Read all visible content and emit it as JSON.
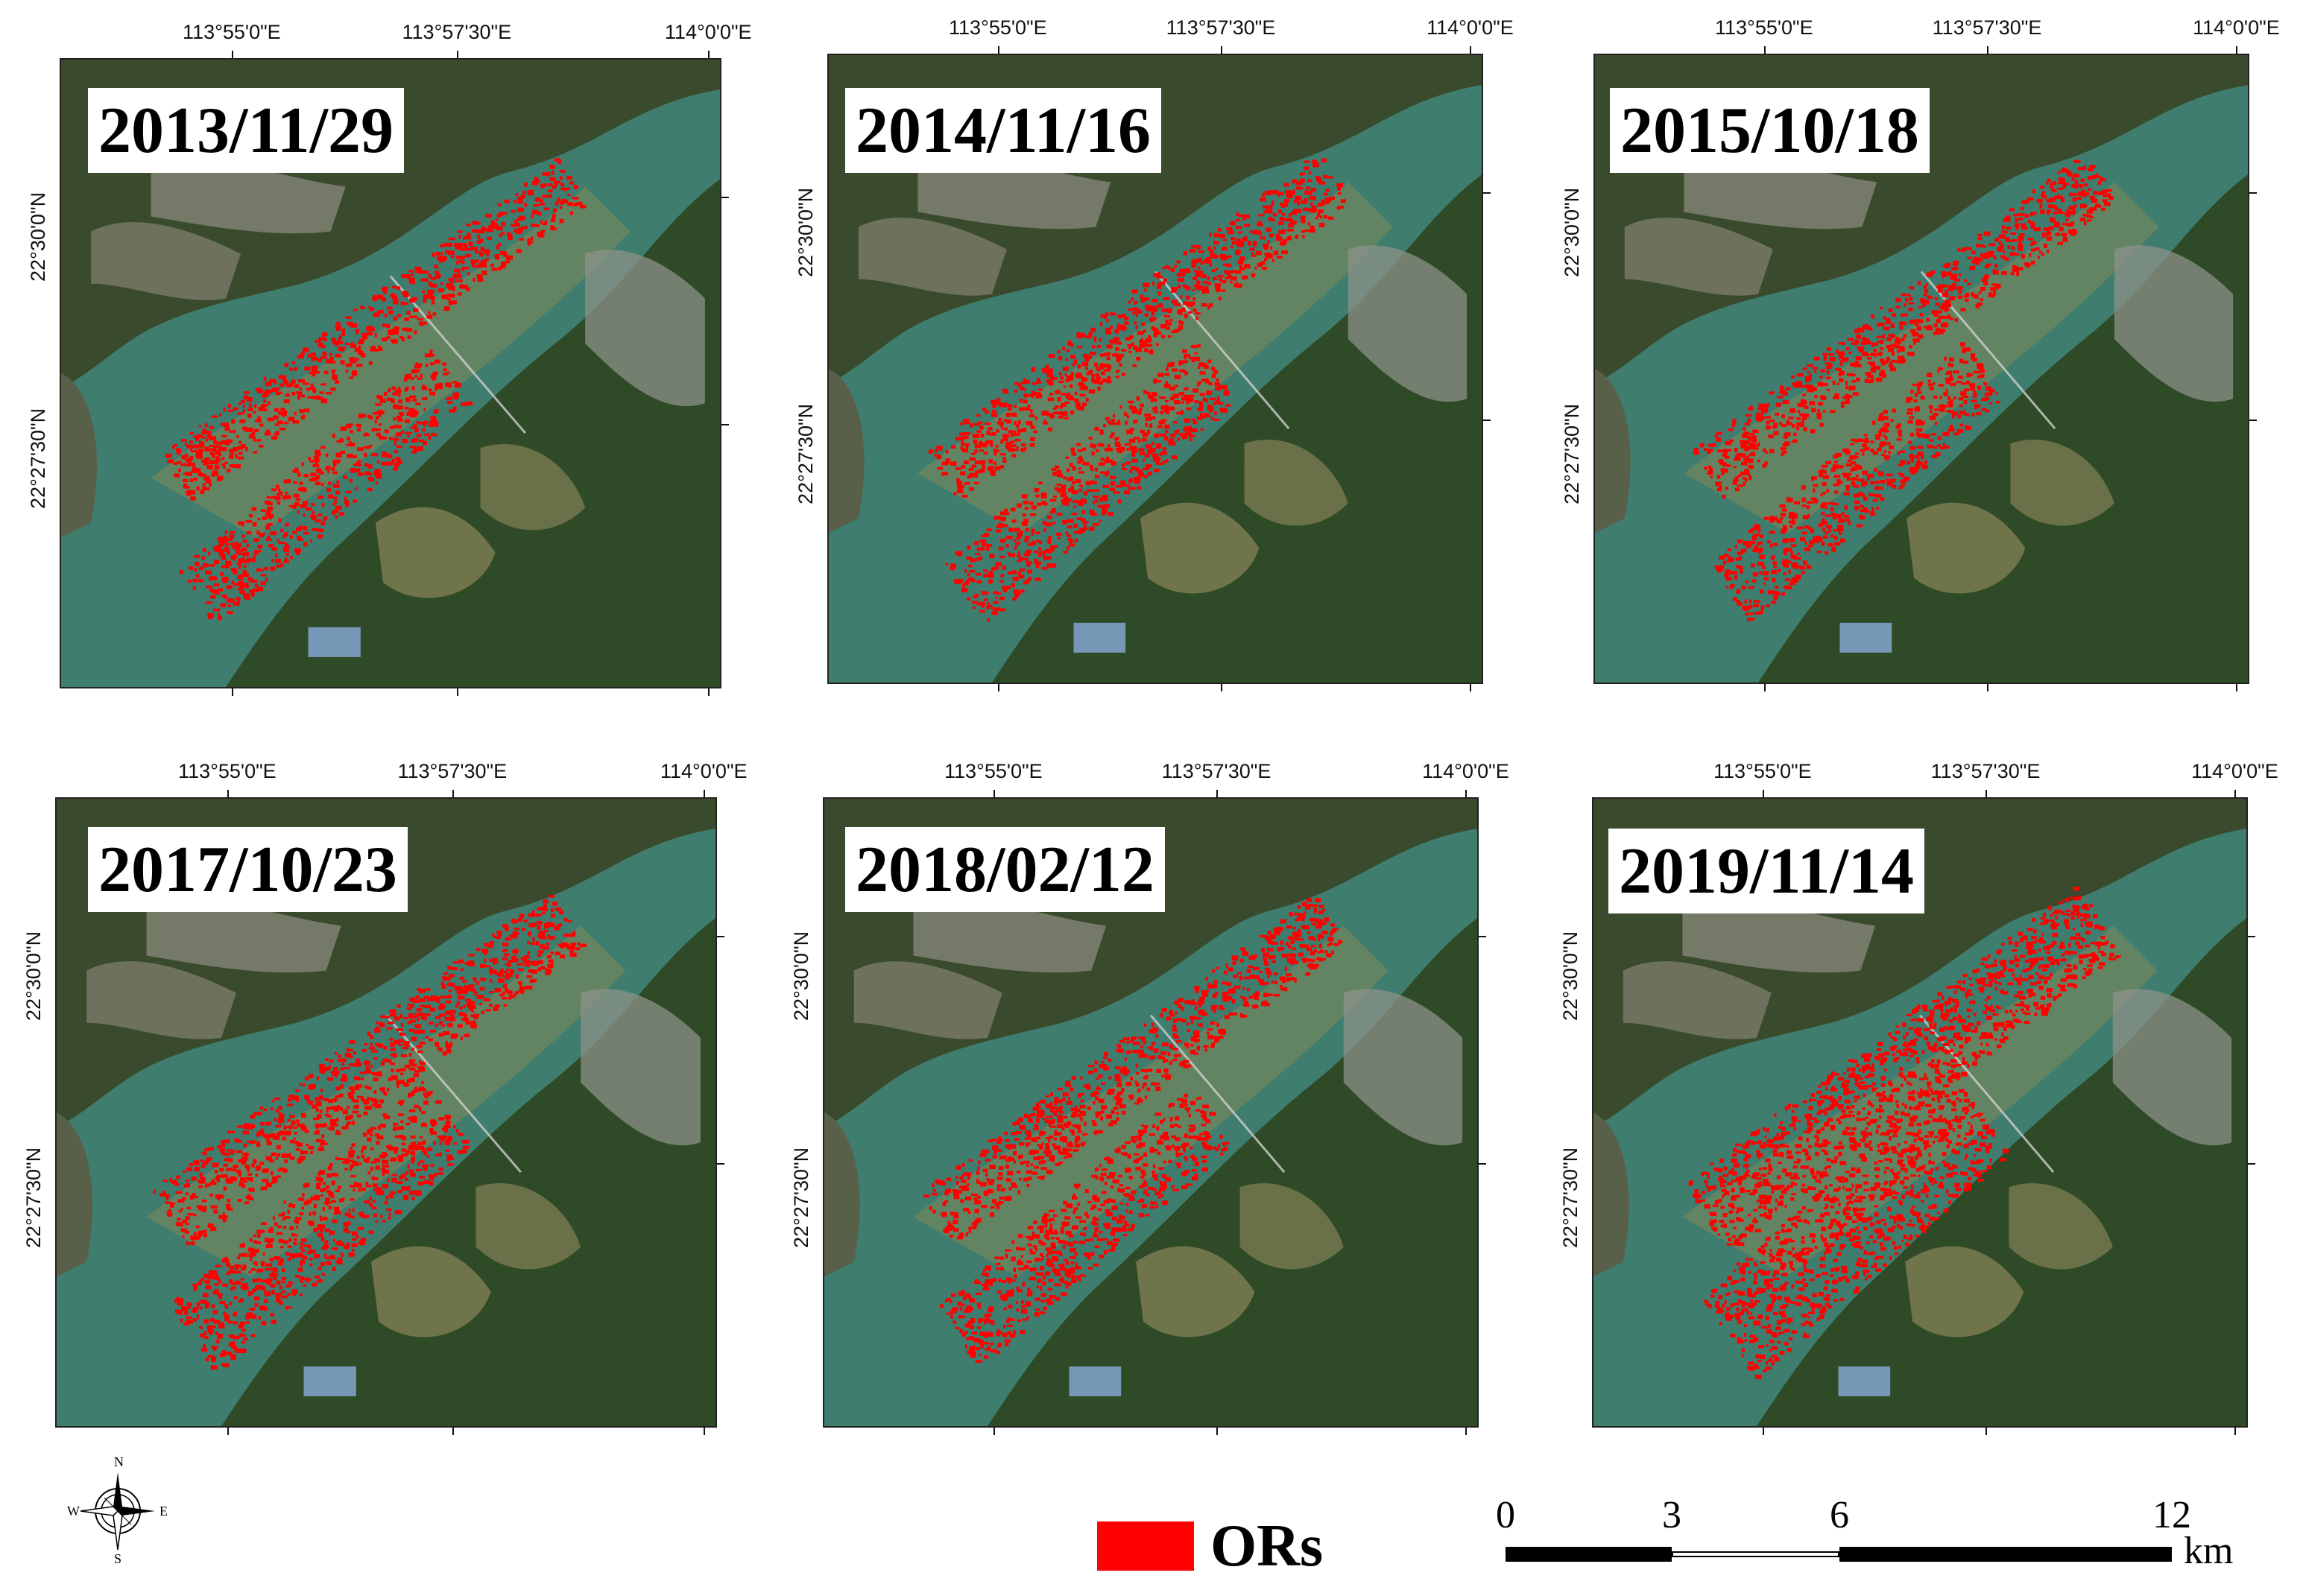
{
  "panels": [
    {
      "date": "2013/11/29",
      "lon_labels": [
        "113°55'0\"E",
        "113°57'30\"E",
        "114°0'0\"E"
      ],
      "lat_labels": [
        "22°30'0\"N",
        "22°27'30\"N"
      ]
    },
    {
      "date": "2014/11/16",
      "lon_labels": [
        "113°55'0\"E",
        "113°57'30\"E",
        "114°0'0\"E"
      ],
      "lat_labels": [
        "22°30'0\"N",
        "22°27'30\"N"
      ]
    },
    {
      "date": "2015/10/18",
      "lon_labels": [
        "113°55'0\"E",
        "113°57'30\"E",
        "114°0'0\"E"
      ],
      "lat_labels": [
        "22°30'0\"N",
        "22°27'30\"N"
      ]
    },
    {
      "date": "2017/10/23",
      "lon_labels": [
        "113°55'0\"E",
        "113°57'30\"E",
        "114°0'0\"E"
      ],
      "lat_labels": [
        "22°30'0\"N",
        "22°27'30\"N"
      ]
    },
    {
      "date": "2018/02/12",
      "lon_labels": [
        "113°55'0\"E",
        "113°57'30\"E",
        "114°0'0\"E"
      ],
      "lat_labels": [
        "22°30'0\"N",
        "22°27'30\"N"
      ]
    },
    {
      "date": "2019/11/14",
      "lon_labels": [
        "113°55'0\"E",
        "113°57'30\"E",
        "114°0'0\"E"
      ],
      "lat_labels": [
        "22°30'0\"N",
        "22°27'30\"N"
      ]
    }
  ],
  "legend": {
    "label": "ORs",
    "color": "#ff0000"
  },
  "scale_bar": {
    "ticks": [
      "0",
      "3",
      "6",
      "12"
    ],
    "unit": "km"
  },
  "compass": {
    "north": "N",
    "south": "S",
    "east": "E",
    "west": "W"
  },
  "colors": {
    "water": "#3f7d6e",
    "land": "#3a4a2c",
    "oyster_rafts": "#ff0000"
  }
}
